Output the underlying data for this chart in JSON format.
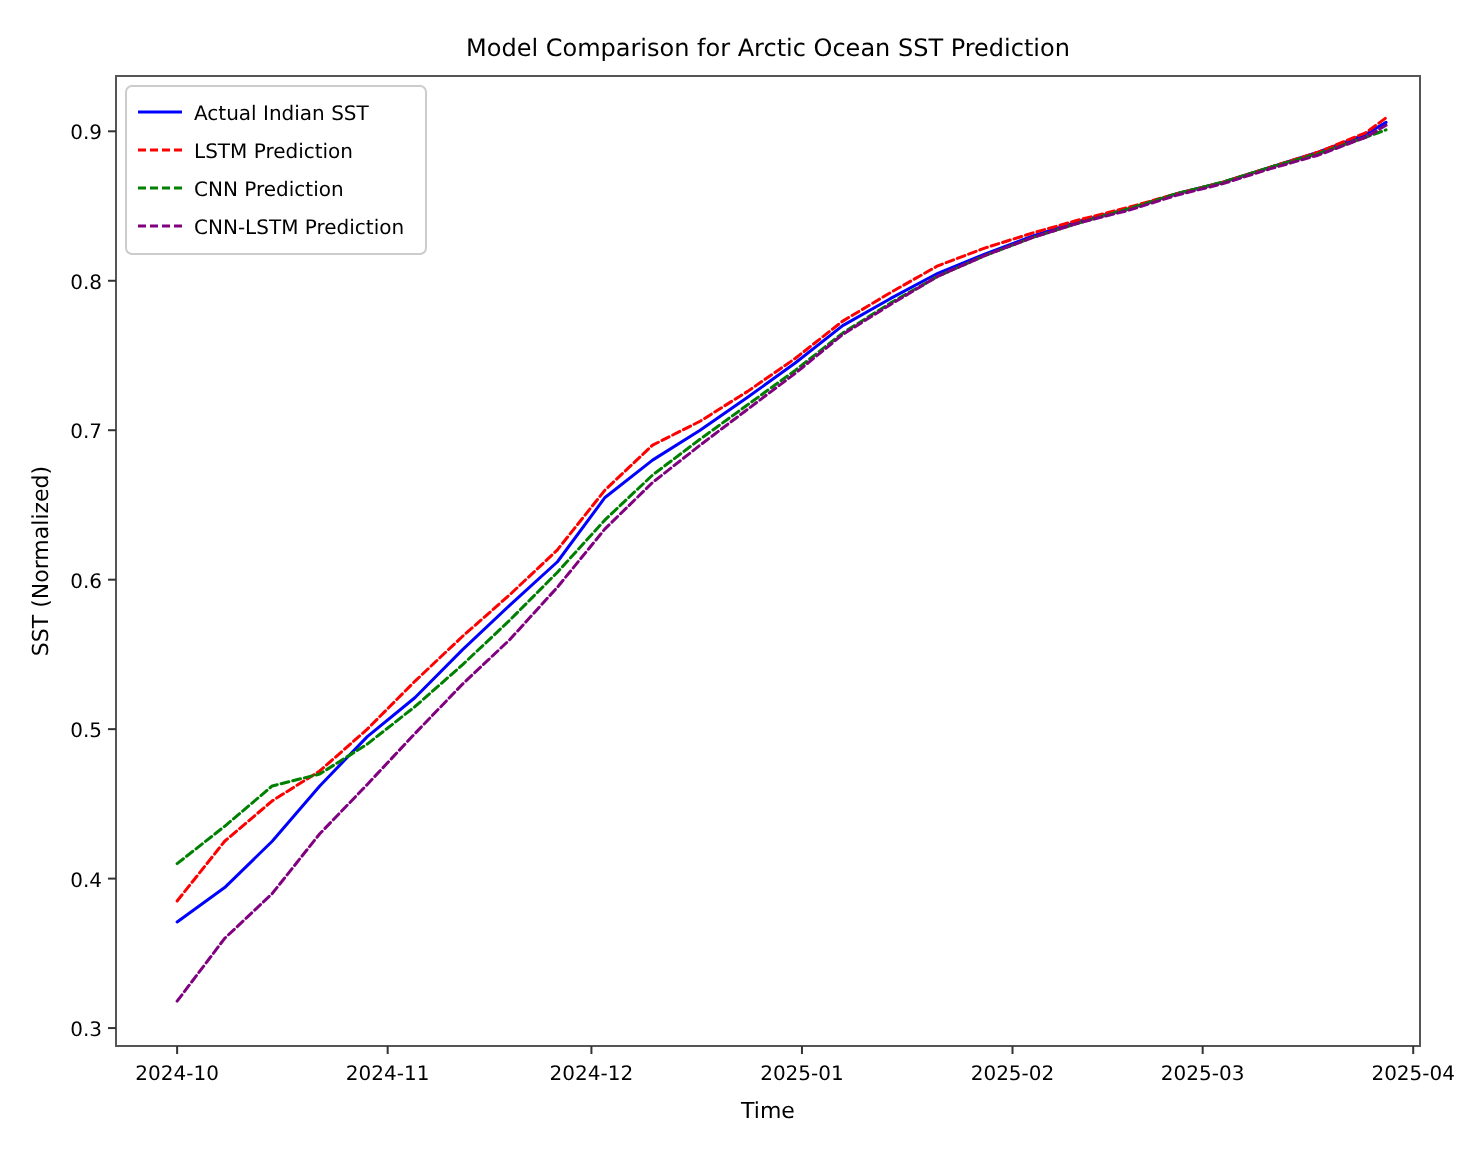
{
  "chart_data": {
    "type": "line",
    "title": "Model Comparison for Arctic Ocean SST Prediction",
    "xlabel": "Time",
    "ylabel": "SST (Normalized)",
    "x": [
      "2024-10-01",
      "2024-10-08",
      "2024-10-15",
      "2024-10-22",
      "2024-10-29",
      "2024-11-05",
      "2024-11-12",
      "2024-11-19",
      "2024-11-26",
      "2024-12-03",
      "2024-12-10",
      "2024-12-17",
      "2024-12-24",
      "2024-12-31",
      "2025-01-07",
      "2025-01-14",
      "2025-01-21",
      "2025-01-28",
      "2025-02-04",
      "2025-02-11",
      "2025-02-18",
      "2025-02-25",
      "2025-03-04",
      "2025-03-11",
      "2025-03-18",
      "2025-03-25",
      "2025-03-28"
    ],
    "series": [
      {
        "name": "Actual Indian SST",
        "color": "#0000ff",
        "line_style": "solid",
        "values": [
          0.371,
          0.394,
          0.425,
          0.462,
          0.495,
          0.521,
          0.553,
          0.583,
          0.612,
          0.655,
          0.68,
          0.7,
          0.722,
          0.745,
          0.77,
          0.788,
          0.805,
          0.818,
          0.83,
          0.84,
          0.848,
          0.858,
          0.866,
          0.876,
          0.886,
          0.898,
          0.906
        ]
      },
      {
        "name": "LSTM Prediction",
        "color": "#ff0000",
        "line_style": "dashed",
        "values": [
          0.385,
          0.425,
          0.452,
          0.472,
          0.5,
          0.532,
          0.562,
          0.59,
          0.62,
          0.66,
          0.69,
          0.706,
          0.726,
          0.748,
          0.773,
          0.792,
          0.81,
          0.822,
          0.832,
          0.841,
          0.849,
          0.858,
          0.866,
          0.876,
          0.886,
          0.899,
          0.909
        ]
      },
      {
        "name": "CNN Prediction",
        "color": "#008000",
        "line_style": "dashed",
        "values": [
          0.41,
          0.435,
          0.462,
          0.47,
          0.49,
          0.515,
          0.543,
          0.573,
          0.605,
          0.64,
          0.67,
          0.694,
          0.717,
          0.74,
          0.765,
          0.785,
          0.803,
          0.817,
          0.829,
          0.839,
          0.848,
          0.858,
          0.866,
          0.876,
          0.885,
          0.896,
          0.901
        ]
      },
      {
        "name": "CNN-LSTM Prediction",
        "color": "#800080",
        "line_style": "dashed",
        "values": [
          0.318,
          0.36,
          0.39,
          0.43,
          0.463,
          0.497,
          0.53,
          0.56,
          0.595,
          0.634,
          0.665,
          0.69,
          0.714,
          0.738,
          0.764,
          0.784,
          0.803,
          0.817,
          0.829,
          0.839,
          0.847,
          0.857,
          0.865,
          0.875,
          0.884,
          0.896,
          0.904
        ]
      }
    ],
    "xlim": [
      "2024-09-22",
      "2025-04-02"
    ],
    "ylim": [
      0.288,
      0.937
    ],
    "xticks": [
      {
        "value": "2024-10-01",
        "label": "2024-10"
      },
      {
        "value": "2024-11-01",
        "label": "2024-11"
      },
      {
        "value": "2024-12-01",
        "label": "2024-12"
      },
      {
        "value": "2025-01-01",
        "label": "2025-01"
      },
      {
        "value": "2025-02-01",
        "label": "2025-02"
      },
      {
        "value": "2025-03-01",
        "label": "2025-03"
      },
      {
        "value": "2025-04-01",
        "label": "2025-04"
      }
    ],
    "yticks": [
      0.3,
      0.4,
      0.5,
      0.6,
      0.7,
      0.8,
      0.9
    ],
    "legend": "top left",
    "grid": false
  }
}
